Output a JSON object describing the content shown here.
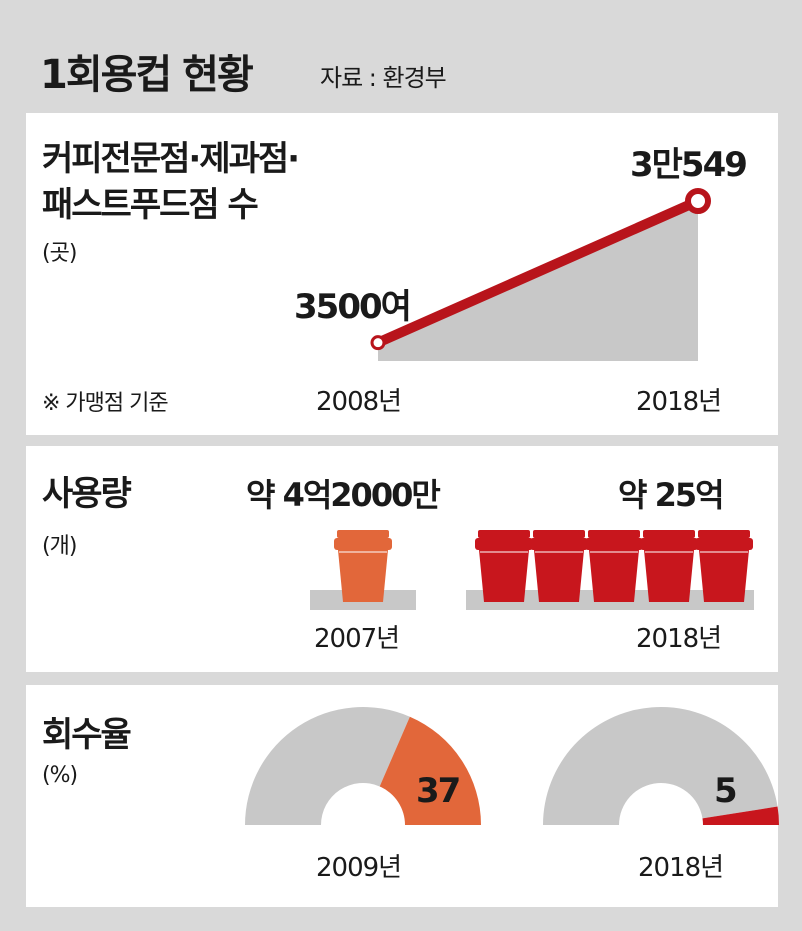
{
  "title": "1회용컵 현황",
  "source": "자료 : 환경부",
  "chart_data": [
    {
      "type": "area",
      "title_lines": [
        "커피전문점·제과점·",
        "패스트푸드점 수"
      ],
      "unit": "(곳)",
      "note": "※ 가맹점 기준",
      "x": [
        "2008년",
        "2018년"
      ],
      "values": [
        3500,
        30549
      ],
      "value_labels": [
        "3500여",
        "3만549"
      ],
      "colors": {
        "line": "#b8141b",
        "fill": "#c8c8c8"
      }
    },
    {
      "type": "bar",
      "title": "사용량",
      "unit": "(개)",
      "categories": [
        "2007년",
        "2018년"
      ],
      "values": [
        420000000,
        2500000000
      ],
      "value_labels": [
        "약 4억2000만",
        "약 25억"
      ],
      "cup_counts": [
        1,
        5
      ],
      "colors": {
        "2007": "#e2673a",
        "2018": "#c8161d",
        "shelf": "#c8c8c8"
      }
    },
    {
      "type": "pie",
      "title": "회수율",
      "unit": "(%)",
      "categories": [
        "2009년",
        "2018년"
      ],
      "values": [
        37,
        5
      ],
      "value_labels": [
        "37",
        "5"
      ],
      "colors": {
        "2009": "#e2673a",
        "2018": "#c8161d",
        "rest": "#c8c8c8"
      }
    }
  ]
}
